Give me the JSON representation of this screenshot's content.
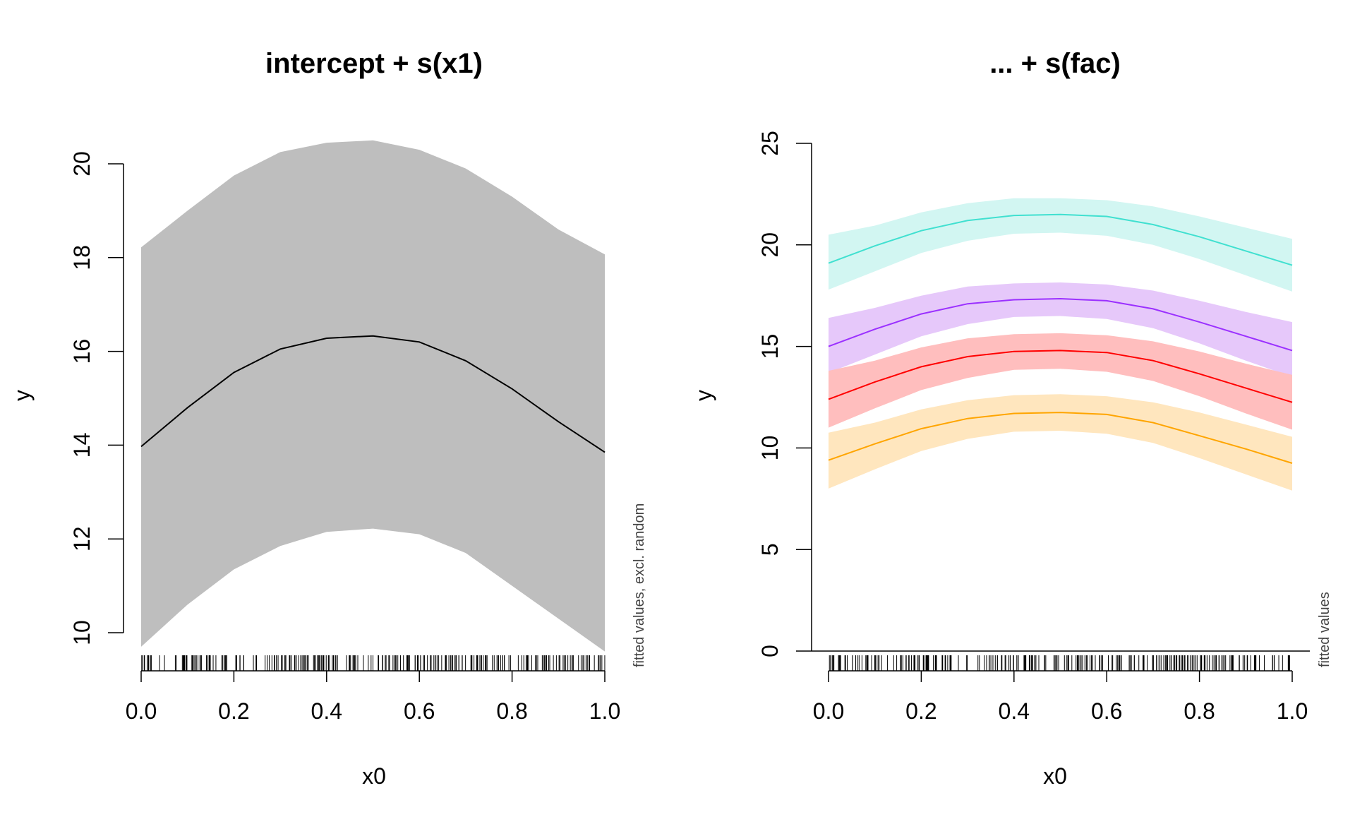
{
  "chart_data": [
    {
      "type": "line",
      "title": "intercept + s(x1)",
      "xlabel": "x0",
      "ylabel": "y",
      "side_note": "fitted values, excl. random",
      "xlim": [
        0,
        1
      ],
      "ylim": [
        10,
        20
      ],
      "x_ticks": [
        0.0,
        0.2,
        0.4,
        0.6,
        0.8,
        1.0
      ],
      "x_tick_labels": [
        "0.0",
        "0.2",
        "0.4",
        "0.6",
        "0.8",
        "1.0"
      ],
      "y_ticks": [
        10,
        12,
        14,
        16,
        18,
        20
      ],
      "y_tick_labels": [
        "10",
        "12",
        "14",
        "16",
        "18",
        "20"
      ],
      "grid": false,
      "x": [
        0.0,
        0.1,
        0.2,
        0.3,
        0.4,
        0.5,
        0.6,
        0.7,
        0.8,
        0.9,
        1.0
      ],
      "series": [
        {
          "fit": [
            13.97,
            14.8,
            15.55,
            16.05,
            16.28,
            16.33,
            16.2,
            15.8,
            15.2,
            14.5,
            13.85
          ],
          "lower": [
            9.7,
            10.6,
            11.35,
            11.85,
            12.15,
            12.22,
            12.1,
            11.7,
            11.0,
            10.3,
            9.6
          ],
          "upper": [
            18.22,
            19.0,
            19.75,
            20.25,
            20.45,
            20.5,
            20.3,
            19.9,
            19.3,
            18.6,
            18.07
          ],
          "line_color": "#000000",
          "band_color": "#bebebe"
        }
      ],
      "rug": true
    },
    {
      "type": "line",
      "title": "... + s(fac)",
      "xlabel": "x0",
      "ylabel": "y",
      "side_note": "fitted values",
      "xlim": [
        0,
        1
      ],
      "ylim": [
        0,
        25
      ],
      "x_ticks": [
        0.0,
        0.2,
        0.4,
        0.6,
        0.8,
        1.0
      ],
      "x_tick_labels": [
        "0.0",
        "0.2",
        "0.4",
        "0.6",
        "0.8",
        "1.0"
      ],
      "y_ticks": [
        0,
        5,
        10,
        15,
        20,
        25
      ],
      "y_tick_labels": [
        "0",
        "5",
        "10",
        "15",
        "20",
        "25"
      ],
      "grid": false,
      "x": [
        0.0,
        0.1,
        0.2,
        0.3,
        0.4,
        0.5,
        0.6,
        0.7,
        0.8,
        0.9,
        1.0
      ],
      "series": [
        {
          "fit": [
            19.1,
            19.95,
            20.7,
            21.2,
            21.45,
            21.5,
            21.4,
            21.0,
            20.4,
            19.7,
            19.0
          ],
          "lower": [
            17.8,
            18.7,
            19.6,
            20.2,
            20.55,
            20.6,
            20.45,
            20.0,
            19.3,
            18.5,
            17.7
          ],
          "upper": [
            20.5,
            20.95,
            21.6,
            22.05,
            22.3,
            22.3,
            22.2,
            21.9,
            21.4,
            20.85,
            20.3
          ],
          "line_color": "#40e0d0",
          "band_color": "#d2f6f2"
        },
        {
          "fit": [
            15.0,
            15.85,
            16.6,
            17.1,
            17.3,
            17.35,
            17.25,
            16.85,
            16.2,
            15.5,
            14.8
          ],
          "lower": [
            13.7,
            14.6,
            15.5,
            16.1,
            16.45,
            16.5,
            16.35,
            15.9,
            15.15,
            14.3,
            13.5
          ],
          "upper": [
            16.4,
            16.9,
            17.5,
            17.95,
            18.1,
            18.15,
            18.05,
            17.75,
            17.25,
            16.7,
            16.2
          ],
          "line_color": "#9b30ff",
          "band_color": "#e6c8fa"
        },
        {
          "fit": [
            12.4,
            13.25,
            14.0,
            14.5,
            14.75,
            14.8,
            14.7,
            14.3,
            13.65,
            12.95,
            12.25
          ],
          "lower": [
            11.0,
            11.95,
            12.85,
            13.45,
            13.85,
            13.9,
            13.75,
            13.3,
            12.55,
            11.7,
            10.9
          ],
          "upper": [
            13.8,
            14.3,
            14.95,
            15.4,
            15.6,
            15.65,
            15.55,
            15.25,
            14.75,
            14.15,
            13.6
          ],
          "line_color": "#ff0000",
          "band_color": "#ffbebe"
        },
        {
          "fit": [
            9.4,
            10.2,
            10.95,
            11.45,
            11.7,
            11.75,
            11.65,
            11.25,
            10.6,
            9.95,
            9.25
          ],
          "lower": [
            8.0,
            8.95,
            9.85,
            10.45,
            10.8,
            10.85,
            10.7,
            10.25,
            9.5,
            8.7,
            7.9
          ],
          "upper": [
            10.75,
            11.25,
            11.9,
            12.35,
            12.6,
            12.65,
            12.55,
            12.25,
            11.75,
            11.15,
            10.55
          ],
          "line_color": "#ffa500",
          "band_color": "#ffe6be"
        }
      ],
      "rug": true
    }
  ]
}
